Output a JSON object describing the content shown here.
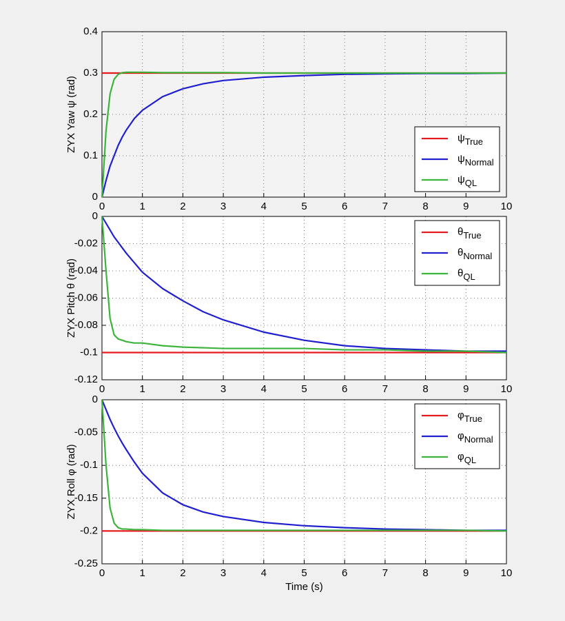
{
  "chart_data": [
    {
      "type": "line",
      "ylabel": "ZYX Yaw ψ (rad)",
      "grid": true,
      "legend": "lower right",
      "plot_background": "#f3f3f3",
      "x": [
        0,
        0.1,
        0.2,
        0.3,
        0.4,
        0.5,
        0.6,
        0.8,
        1,
        1.5,
        2,
        2.5,
        3,
        4,
        5,
        6,
        7,
        8,
        9,
        10
      ],
      "xlim": [
        0,
        10
      ],
      "xticks": [
        0,
        1,
        2,
        3,
        4,
        5,
        6,
        7,
        8,
        9,
        10
      ],
      "ylim": [
        0,
        0.4
      ],
      "yticks": [
        0,
        0.1,
        0.2,
        0.3,
        0.4
      ],
      "series": [
        {
          "name": "ψ",
          "name_subscript": "True",
          "color": "#e41a1c",
          "values": [
            0.3,
            0.3,
            0.3,
            0.3,
            0.3,
            0.3,
            0.3,
            0.3,
            0.3,
            0.3,
            0.3,
            0.3,
            0.3,
            0.3,
            0.3,
            0.3,
            0.3,
            0.3,
            0.3,
            0.3
          ]
        },
        {
          "name": "ψ",
          "name_subscript": "Normal",
          "color": "#1f1fd0",
          "values": [
            0,
            0.04,
            0.075,
            0.1,
            0.125,
            0.145,
            0.162,
            0.19,
            0.21,
            0.243,
            0.262,
            0.274,
            0.282,
            0.29,
            0.294,
            0.297,
            0.298,
            0.299,
            0.299,
            0.3
          ]
        },
        {
          "name": "ψ",
          "name_subscript": "QL",
          "color": "#3cb43c",
          "values": [
            0,
            0.16,
            0.25,
            0.285,
            0.297,
            0.301,
            0.302,
            0.302,
            0.302,
            0.301,
            0.301,
            0.301,
            0.301,
            0.3,
            0.3,
            0.3,
            0.3,
            0.3,
            0.3,
            0.3
          ]
        }
      ]
    },
    {
      "type": "line",
      "ylabel": "ZYX Pitch θ (rad)",
      "grid": true,
      "legend": "upper right",
      "plot_background": "#ffffff",
      "x": [
        0,
        0.1,
        0.2,
        0.3,
        0.4,
        0.5,
        0.6,
        0.8,
        1,
        1.5,
        2,
        2.5,
        3,
        4,
        5,
        6,
        7,
        8,
        9,
        10
      ],
      "xlim": [
        0,
        10
      ],
      "xticks": [
        0,
        1,
        2,
        3,
        4,
        5,
        6,
        7,
        8,
        9,
        10
      ],
      "ylim": [
        -0.12,
        0
      ],
      "yticks": [
        -0.12,
        -0.1,
        -0.08,
        -0.06,
        -0.04,
        -0.02,
        0
      ],
      "series": [
        {
          "name": "θ",
          "name_subscript": "True",
          "color": "#e41a1c",
          "values": [
            -0.1,
            -0.1,
            -0.1,
            -0.1,
            -0.1,
            -0.1,
            -0.1,
            -0.1,
            -0.1,
            -0.1,
            -0.1,
            -0.1,
            -0.1,
            -0.1,
            -0.1,
            -0.1,
            -0.1,
            -0.1,
            -0.1,
            -0.1
          ]
        },
        {
          "name": "θ",
          "name_subscript": "Normal",
          "color": "#1f1fd0",
          "values": [
            0,
            -0.005,
            -0.01,
            -0.015,
            -0.019,
            -0.023,
            -0.027,
            -0.034,
            -0.041,
            -0.053,
            -0.062,
            -0.07,
            -0.076,
            -0.085,
            -0.091,
            -0.095,
            -0.097,
            -0.098,
            -0.099,
            -0.099
          ]
        },
        {
          "name": "θ",
          "name_subscript": "QL",
          "color": "#3cb43c",
          "values": [
            0,
            -0.04,
            -0.075,
            -0.087,
            -0.09,
            -0.091,
            -0.092,
            -0.093,
            -0.093,
            -0.095,
            -0.096,
            -0.0965,
            -0.097,
            -0.097,
            -0.097,
            -0.098,
            -0.098,
            -0.099,
            -0.099,
            -0.1
          ]
        }
      ]
    },
    {
      "type": "line",
      "ylabel": "ZYX Roll φ (rad)",
      "xlabel": "Time (s)",
      "grid": true,
      "legend": "upper right",
      "plot_background": "#ffffff",
      "x": [
        0,
        0.1,
        0.2,
        0.3,
        0.4,
        0.5,
        0.6,
        0.8,
        1,
        1.5,
        2,
        2.5,
        3,
        4,
        5,
        6,
        7,
        8,
        9,
        10
      ],
      "xlim": [
        0,
        10
      ],
      "xticks": [
        0,
        1,
        2,
        3,
        4,
        5,
        6,
        7,
        8,
        9,
        10
      ],
      "ylim": [
        -0.25,
        0
      ],
      "yticks": [
        -0.25,
        -0.2,
        -0.15,
        -0.1,
        -0.05,
        0
      ],
      "series": [
        {
          "name": "φ",
          "name_subscript": "True",
          "color": "#e41a1c",
          "values": [
            -0.2,
            -0.2,
            -0.2,
            -0.2,
            -0.2,
            -0.2,
            -0.2,
            -0.2,
            -0.2,
            -0.2,
            -0.2,
            -0.2,
            -0.2,
            -0.2,
            -0.2,
            -0.2,
            -0.2,
            -0.2,
            -0.2,
            -0.2
          ]
        },
        {
          "name": "φ",
          "name_subscript": "Normal",
          "color": "#1f1fd0",
          "values": [
            0,
            -0.015,
            -0.03,
            -0.043,
            -0.055,
            -0.066,
            -0.076,
            -0.095,
            -0.112,
            -0.142,
            -0.16,
            -0.171,
            -0.178,
            -0.187,
            -0.192,
            -0.195,
            -0.197,
            -0.198,
            -0.199,
            -0.199
          ]
        },
        {
          "name": "φ",
          "name_subscript": "QL",
          "color": "#3cb43c",
          "values": [
            0,
            -0.1,
            -0.165,
            -0.188,
            -0.195,
            -0.197,
            -0.197,
            -0.198,
            -0.198,
            -0.199,
            -0.199,
            -0.199,
            -0.199,
            -0.199,
            -0.199,
            -0.199,
            -0.199,
            -0.199,
            -0.199,
            -0.2
          ]
        }
      ]
    }
  ]
}
